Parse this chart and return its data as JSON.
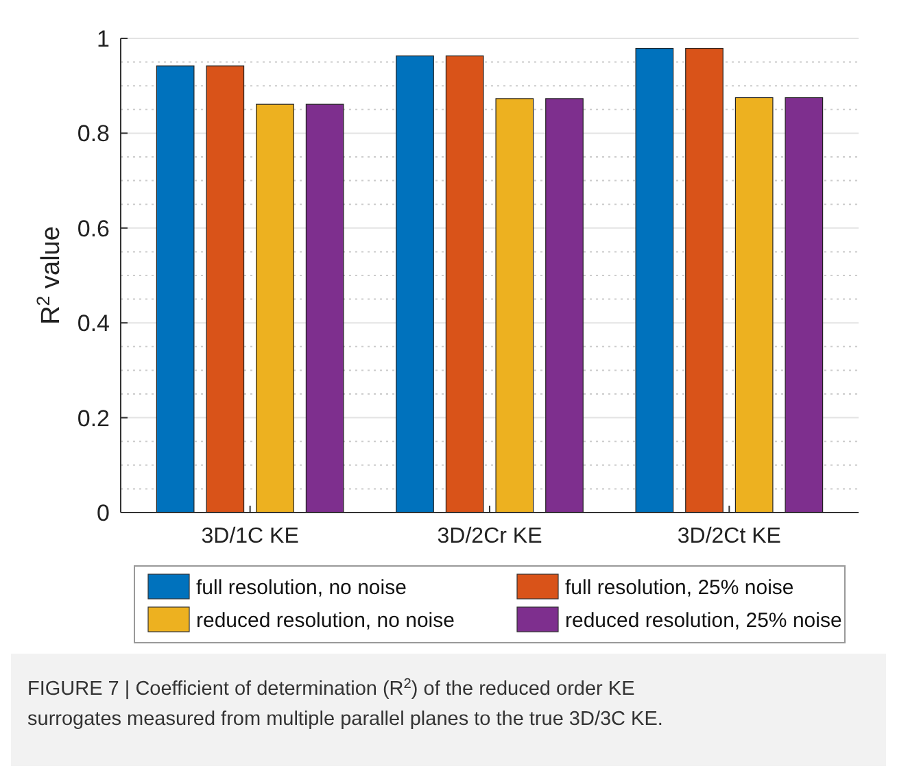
{
  "chart_data": {
    "type": "bar",
    "ylabel": "R$^{2}$ value",
    "categories": [
      "3D/1C KE",
      "3D/2Cr KE",
      "3D/2Ct KE"
    ],
    "series": [
      {
        "name": "full resolution, no noise",
        "color": "#0072bd",
        "values": [
          0.942,
          0.963,
          0.979
        ]
      },
      {
        "name": "full resolution, 25% noise",
        "color": "#d95319",
        "values": [
          0.942,
          0.963,
          0.979
        ]
      },
      {
        "name": "reduced resolution, no noise",
        "color": "#edb120",
        "values": [
          0.861,
          0.873,
          0.875
        ]
      },
      {
        "name": "reduced resolution, 25% noise",
        "color": "#7e2f8e",
        "values": [
          0.861,
          0.873,
          0.875
        ]
      }
    ],
    "ylim": [
      0,
      1
    ],
    "yticks": [
      0,
      {
        "value": 0.05,
        "label": null
      },
      {
        "value": 0.1,
        "label": null
      },
      {
        "value": 0.15,
        "label": null
      },
      0.2,
      {
        "value": 0.25,
        "label": null
      },
      {
        "value": 0.3,
        "label": null
      },
      {
        "value": 0.35,
        "label": null
      },
      0.4,
      {
        "value": 0.45,
        "label": null
      },
      {
        "value": 0.5,
        "label": null
      },
      {
        "value": 0.55,
        "label": null
      },
      0.6,
      {
        "value": 0.65,
        "label": null
      },
      {
        "value": 0.7,
        "label": null
      },
      {
        "value": 0.75,
        "label": null
      },
      0.8,
      {
        "value": 0.85,
        "label": null
      },
      {
        "value": 0.9,
        "label": null
      },
      {
        "value": 0.95,
        "label": null
      },
      1
    ],
    "grid": true,
    "legend": "bottom",
    "annotations": [
      "FIGURE 7 | Coefficient of determination (R$^{2}$) of the reduced order KE surrogates measured from multiple parallel planes to the true 3D/3C KE."
    ]
  }
}
